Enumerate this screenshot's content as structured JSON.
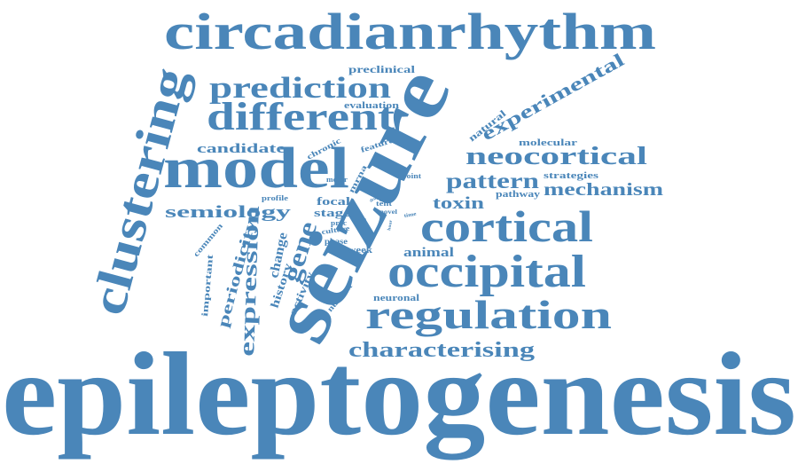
{
  "color": "#4a86b9",
  "words": [
    "epileptogenesis",
    "seizure",
    "circadianrhythm",
    "clustering",
    "model",
    "different",
    "prediction",
    "cortical",
    "occipital",
    "regulation",
    "neocortical",
    "experimental",
    "pattern",
    "mechanism",
    "characterising",
    "expression",
    "semiology",
    "gene",
    "periodicity",
    "toxin",
    "animal",
    "candidate",
    "molecular",
    "change",
    "history",
    "activity",
    "preclinical",
    "evaluation",
    "natural",
    "chronic",
    "feature",
    "mrna",
    "strategies",
    "pathway",
    "focal",
    "stage",
    "profile",
    "motor",
    "point",
    "important",
    "common",
    "culture",
    "phase",
    "week",
    "neuronal",
    "number",
    "proc",
    "tent",
    "novel",
    "time",
    "hour",
    "late",
    "drug",
    "vitro"
  ]
}
